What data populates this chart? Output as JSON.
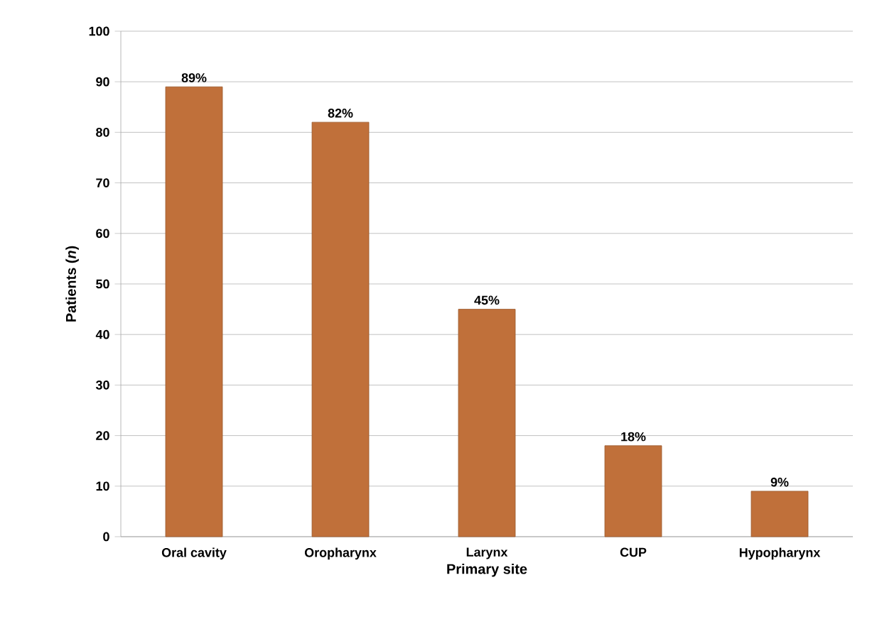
{
  "chart_data": {
    "type": "bar",
    "xlabel": "Primary site",
    "ylabel": "Patients (*n*)",
    "categories": [
      "Oral cavity",
      "Oropharynx",
      "Larynx",
      "CUP",
      "Hypopharynx"
    ],
    "values": [
      89,
      82,
      45,
      18,
      9
    ],
    "value_labels": [
      "89%",
      "82%",
      "45%",
      "18%",
      "9%"
    ],
    "color": "#c0703a",
    "ylim": [
      0,
      100
    ],
    "yticks": [
      0,
      10,
      20,
      30,
      40,
      50,
      60,
      70,
      80,
      90,
      100
    ],
    "grid": "y"
  }
}
